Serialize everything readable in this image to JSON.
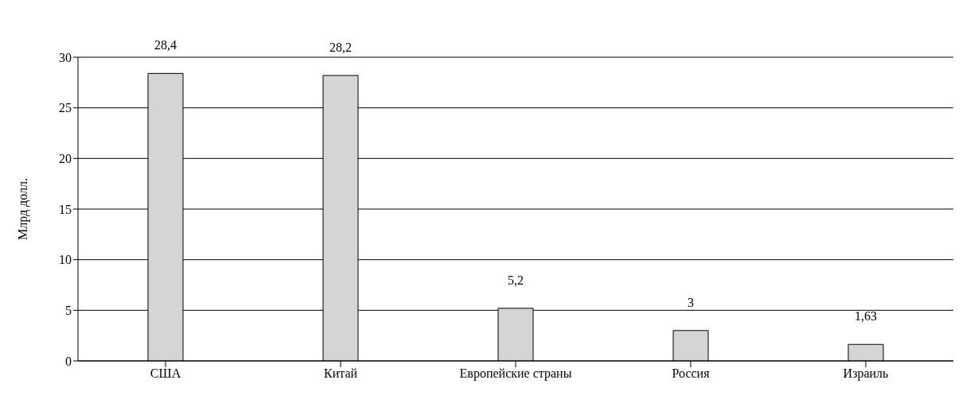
{
  "chart_data": {
    "type": "bar",
    "ylabel": "Млрд долл.",
    "categories": [
      "США",
      "Китай",
      "Европейские страны",
      "Россия",
      "Израиль"
    ],
    "values": [
      28.4,
      28.2,
      5.2,
      3,
      1.63
    ],
    "value_labels": [
      "28,4",
      "28,2",
      "5,2",
      "3",
      "1,63"
    ],
    "color": "#d4d4d4",
    "ylim": [
      0,
      30
    ],
    "yticks": [
      0,
      5,
      10,
      15,
      20,
      25,
      30
    ],
    "grid": "y"
  }
}
